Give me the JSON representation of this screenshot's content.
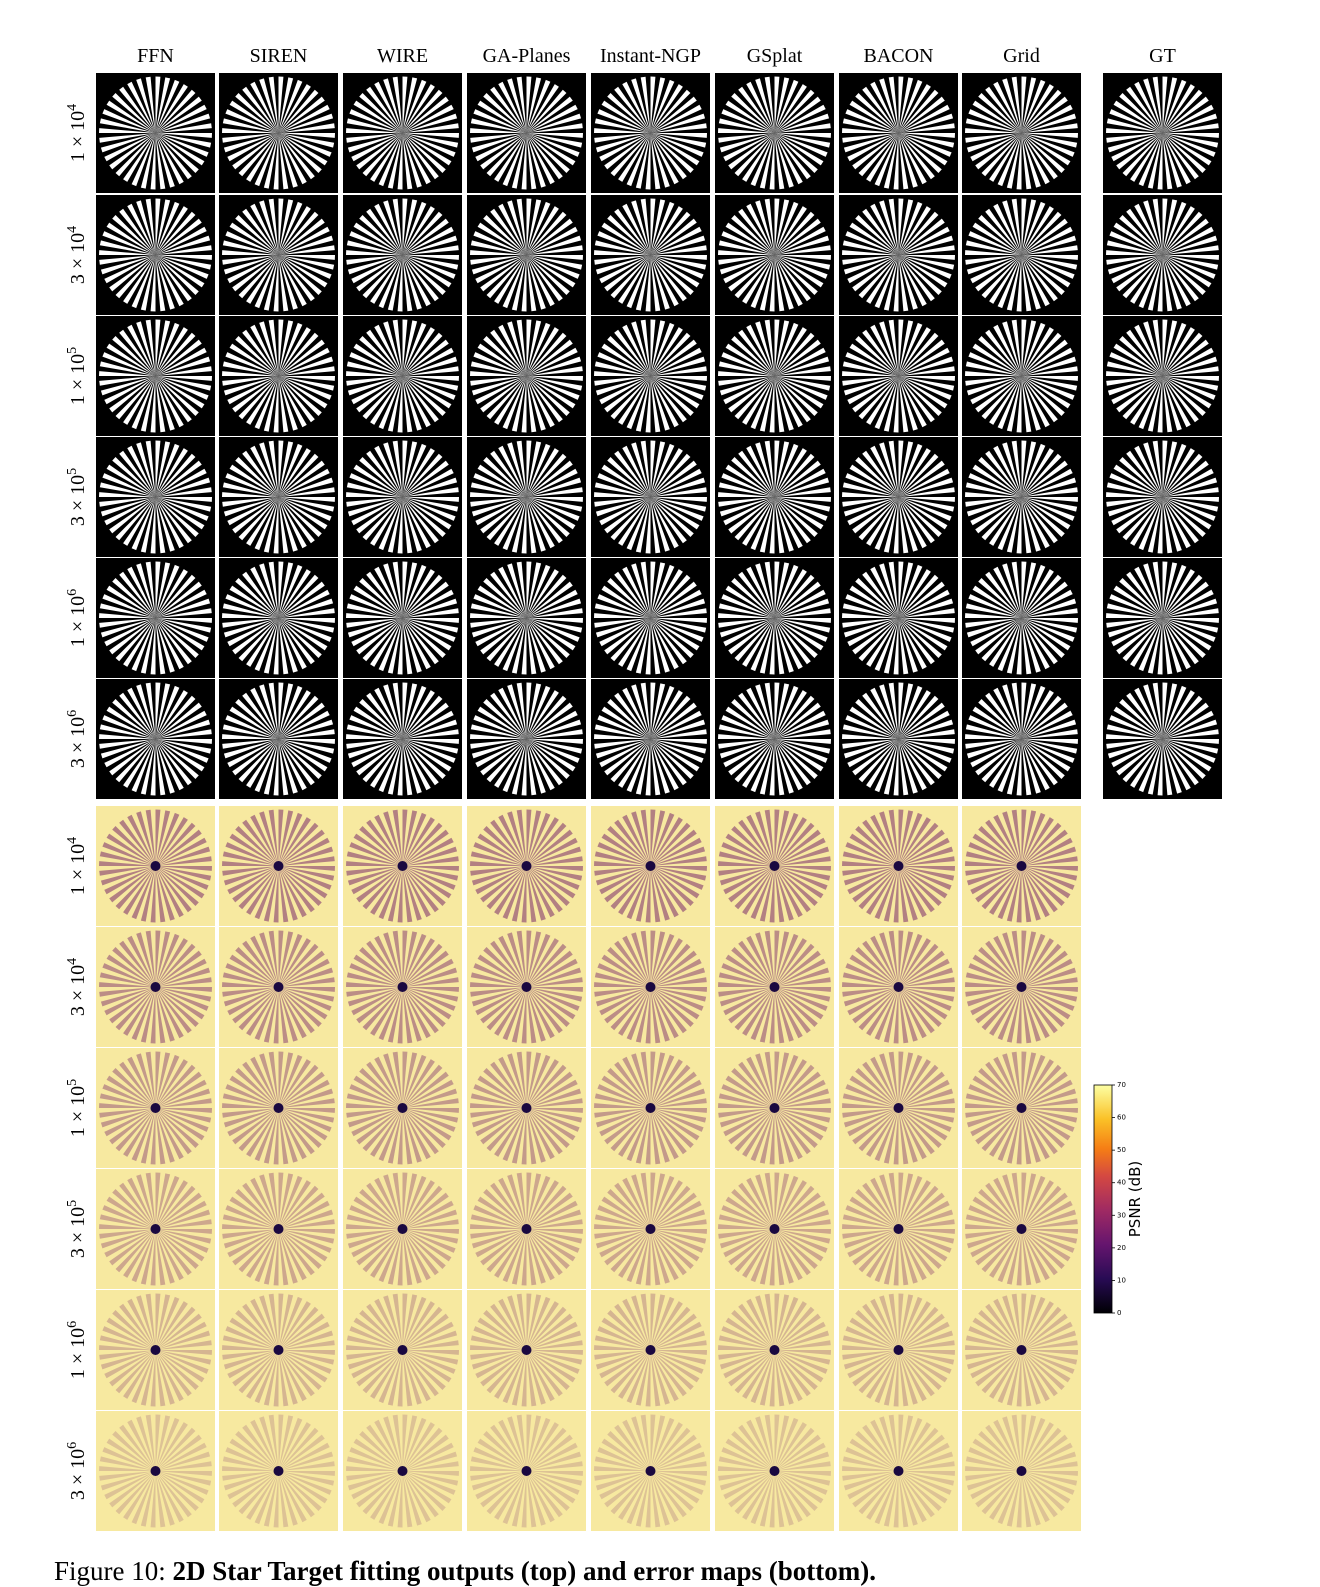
{
  "columns": [
    "FFN",
    "SIREN",
    "WIRE",
    "GA-Planes",
    "Instant-NGP",
    "GSplat",
    "BACON",
    "Grid",
    "GT"
  ],
  "row_labels": [
    {
      "base": "1 × 10",
      "exp": "4"
    },
    {
      "base": "3 × 10",
      "exp": "4"
    },
    {
      "base": "1 × 10",
      "exp": "5"
    },
    {
      "base": "3 × 10",
      "exp": "5"
    },
    {
      "base": "1 × 10",
      "exp": "6"
    },
    {
      "base": "3 × 10",
      "exp": "6"
    }
  ],
  "colorbar": {
    "label": "PSNR (dB)",
    "lim": [
      0,
      70
    ],
    "ticks": [
      0,
      10,
      20,
      30,
      40,
      50,
      60,
      70
    ]
  },
  "caption": {
    "number": "Figure 10:",
    "title": "2D Star Target fitting outputs (top) and error maps (bottom)."
  }
}
